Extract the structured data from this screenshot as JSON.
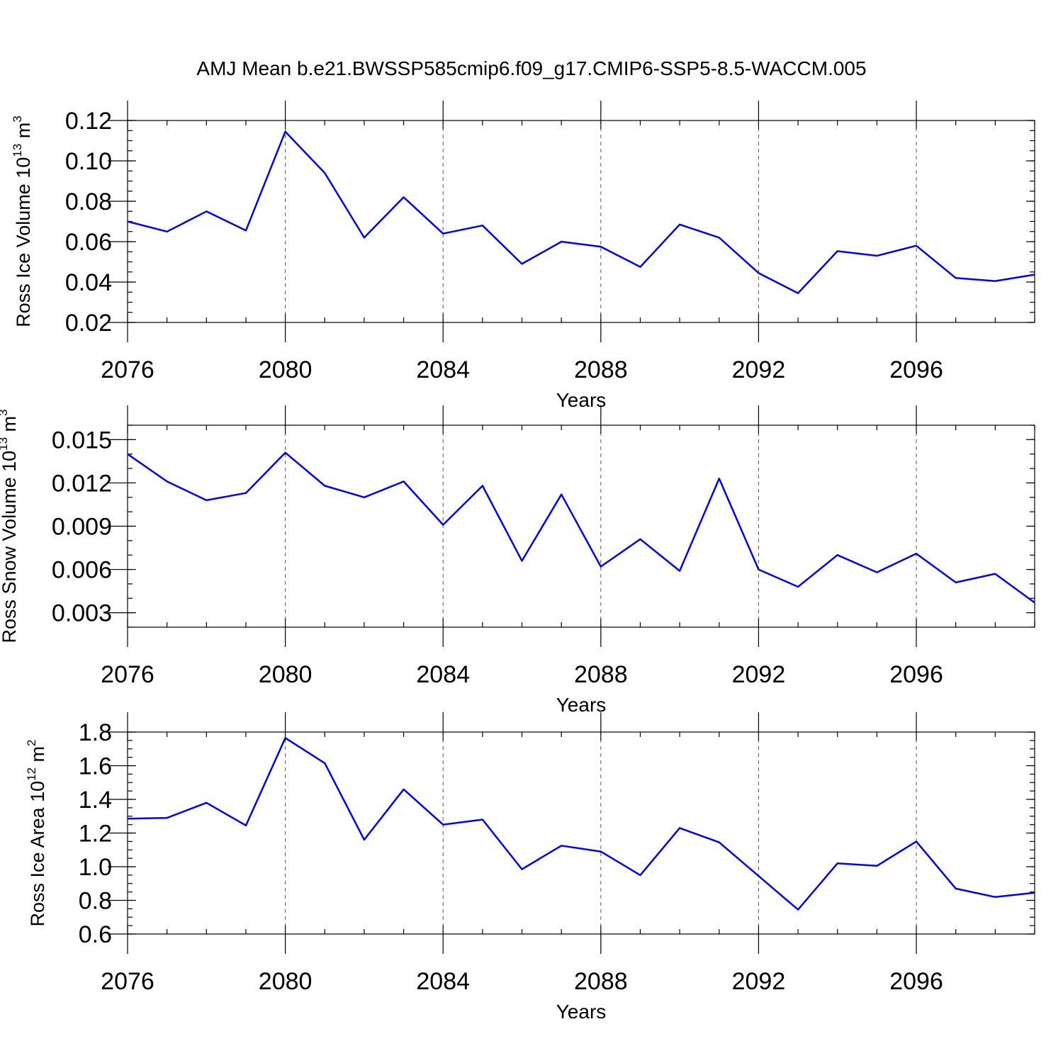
{
  "figure": {
    "title": "AMJ Mean b.e21.BWSSP585cmip6.f09_g17.CMIP6-SSP5-8.5-WACCM.005"
  },
  "colors": {
    "series": "#0000ff",
    "axes": "#000000",
    "grid": "#555555"
  },
  "chart_data": [
    {
      "type": "line",
      "ylabel": {
        "text": "Ross Ice Volume 10",
        "exp": "13",
        "unit": " m",
        "unit_exp": "3"
      },
      "xlabel": "Years",
      "xlim": [
        2076,
        2099
      ],
      "ylim": [
        0.02,
        0.12
      ],
      "y_major_ticks": [
        0.02,
        0.04,
        0.06,
        0.08,
        0.1,
        0.12
      ],
      "y_tick_labels": [
        "0.02",
        "0.04",
        "0.06",
        "0.08",
        "0.10",
        "0.12"
      ],
      "y_minor_step": 0.005,
      "y_top_extra": 0.125,
      "x_major_ticks": [
        2076,
        2080,
        2084,
        2088,
        2092,
        2096
      ],
      "x_tick_labels": [
        "2076",
        "2080",
        "2084",
        "2088",
        "2092",
        "2096"
      ],
      "grid": "x-major-dashed",
      "x": [
        2076,
        2077,
        2078,
        2079,
        2080,
        2081,
        2082,
        2083,
        2084,
        2085,
        2086,
        2087,
        2088,
        2089,
        2090,
        2091,
        2092,
        2093,
        2094,
        2095,
        2096,
        2097,
        2098,
        2099
      ],
      "values": [
        0.07,
        0.065,
        0.075,
        0.0655,
        0.1145,
        0.094,
        0.062,
        0.082,
        0.064,
        0.068,
        0.049,
        0.06,
        0.0575,
        0.0475,
        0.0685,
        0.062,
        0.0445,
        0.0345,
        0.0553,
        0.053,
        0.058,
        0.042,
        0.0405,
        0.0437
      ]
    },
    {
      "type": "line",
      "ylabel": {
        "text": "Ross Snow Volume 10",
        "exp": "13",
        "unit": " m",
        "unit_exp": "3"
      },
      "xlabel": "Years",
      "xlim": [
        2076,
        2099
      ],
      "ylim": [
        0.002,
        0.016
      ],
      "y_major_ticks": [
        0.003,
        0.006,
        0.009,
        0.012,
        0.015
      ],
      "y_tick_labels": [
        "0.003",
        "0.006",
        "0.009",
        "0.012",
        "0.015"
      ],
      "y_minor_step": 0.001,
      "y_top_extra": 0.0172,
      "x_major_ticks": [
        2076,
        2080,
        2084,
        2088,
        2092,
        2096
      ],
      "x_tick_labels": [
        "2076",
        "2080",
        "2084",
        "2088",
        "2092",
        "2096"
      ],
      "grid": "x-major-dashed",
      "x": [
        2076,
        2077,
        2078,
        2079,
        2080,
        2081,
        2082,
        2083,
        2084,
        2085,
        2086,
        2087,
        2088,
        2089,
        2090,
        2091,
        2092,
        2093,
        2094,
        2095,
        2096,
        2097,
        2098,
        2099
      ],
      "values": [
        0.014,
        0.0121,
        0.0108,
        0.0113,
        0.0141,
        0.0118,
        0.011,
        0.0121,
        0.0091,
        0.0118,
        0.0066,
        0.0112,
        0.0062,
        0.0081,
        0.0059,
        0.0123,
        0.006,
        0.0048,
        0.007,
        0.0058,
        0.0071,
        0.0051,
        0.0057,
        0.0037
      ]
    },
    {
      "type": "line",
      "ylabel": {
        "text": "Ross Ice Area 10",
        "exp": "12",
        "unit": " m",
        "unit_exp": "2"
      },
      "xlabel": "Years",
      "xlim": [
        2076,
        2099
      ],
      "ylim": [
        0.6,
        1.8
      ],
      "y_major_ticks": [
        0.6,
        0.8,
        1.0,
        1.2,
        1.4,
        1.6,
        1.8
      ],
      "y_tick_labels": [
        "0.6",
        "0.8",
        "1.0",
        "1.2",
        "1.4",
        "1.6",
        "1.8"
      ],
      "y_minor_step": 0.05,
      "y_top_extra": 1.9,
      "x_major_ticks": [
        2076,
        2080,
        2084,
        2088,
        2092,
        2096
      ],
      "x_tick_labels": [
        "2076",
        "2080",
        "2084",
        "2088",
        "2092",
        "2096"
      ],
      "grid": "x-major-dashed",
      "x": [
        2076,
        2077,
        2078,
        2079,
        2080,
        2081,
        2082,
        2083,
        2084,
        2085,
        2086,
        2087,
        2088,
        2089,
        2090,
        2091,
        2092,
        2093,
        2094,
        2095,
        2096,
        2097,
        2098,
        2099
      ],
      "values": [
        1.285,
        1.29,
        1.38,
        1.245,
        1.765,
        1.615,
        1.16,
        1.46,
        1.25,
        1.28,
        0.985,
        1.125,
        1.09,
        0.95,
        1.23,
        1.145,
        0.945,
        0.745,
        1.02,
        1.005,
        1.15,
        0.87,
        0.82,
        0.845
      ]
    }
  ]
}
